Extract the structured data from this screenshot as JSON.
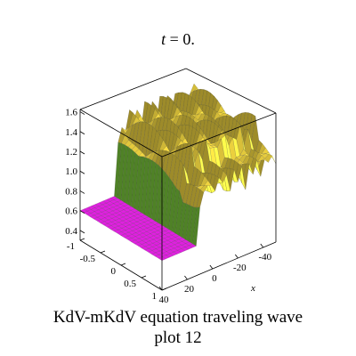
{
  "chart_data": {
    "type": "surface3d",
    "title_var": "t",
    "title_rest": " = 0.",
    "caption_line1": "KdV-mKdV equation  traveling wave",
    "caption_line2": "plot 12",
    "xlabel": "x",
    "ylabel": "",
    "zlabel": "",
    "x_ticks": [
      "40",
      "20",
      "0",
      "-20",
      "-40"
    ],
    "x_tick_values": [
      40,
      20,
      0,
      -20,
      -40
    ],
    "y_ticks": [
      "-1",
      "-0.5",
      "0",
      "0.5",
      "1"
    ],
    "y_tick_values": [
      -1,
      -0.5,
      0,
      0.5,
      1
    ],
    "z_ticks": [
      "0.4",
      "0.6",
      "0.8",
      "1.0",
      "1.2",
      "1.4",
      "1.6"
    ],
    "z_tick_values": [
      0.4,
      0.6,
      0.8,
      1.0,
      1.2,
      1.4,
      1.6
    ],
    "xlim": [
      -50,
      50
    ],
    "ylim": [
      -1,
      1
    ],
    "zlim": [
      0.3,
      1.65
    ],
    "grid": false,
    "surface": {
      "plateau_level": 0.6,
      "peak_level": 1.45,
      "oscillating_region": "x < 0",
      "colors": {
        "plateau": "#e020e0",
        "transition": "#7ac83a",
        "peaks": "#f2d640"
      }
    }
  }
}
